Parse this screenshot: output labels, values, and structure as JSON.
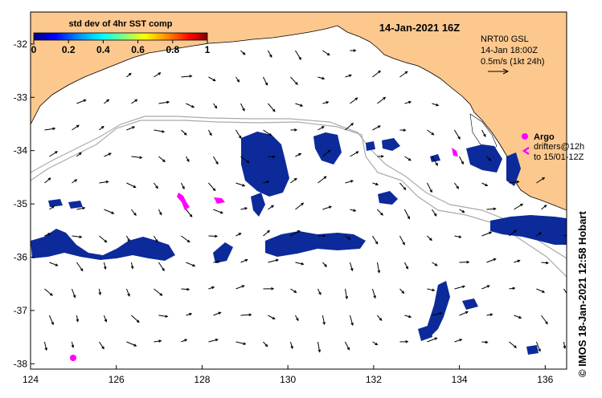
{
  "date_title": "14-Jan-2021 16Z",
  "colorbar": {
    "title": "std dev of 4hr SST comp",
    "ticks": [
      "0",
      "0.2",
      "0.4",
      "0.6",
      "0.8",
      "1"
    ],
    "colors": [
      "#000080",
      "#0000ff",
      "#00a0ff",
      "#00ffff",
      "#80ff80",
      "#ffff00",
      "#ff8000",
      "#ff0000",
      "#800000"
    ]
  },
  "current_info": {
    "line1": "NRT00 GSL",
    "line2": "14-Jan 18:00Z",
    "line3": "0.5m/s (1kt 24h)"
  },
  "legend": {
    "argo_label": "Argo",
    "drifter_label1": "drifters@12h",
    "drifter_label2": "to 15/01-12Z",
    "marker_color": "#ff00ff"
  },
  "axes": {
    "lon_ticks": [
      "124",
      "126",
      "128",
      "130",
      "132",
      "134",
      "136"
    ],
    "lat_ticks": [
      "-32",
      "-33",
      "-34",
      "-35",
      "-36",
      "-37",
      "-38"
    ],
    "lon_range": [
      124,
      136.5
    ],
    "lat_range": [
      -31.4,
      -38.1
    ]
  },
  "colors": {
    "land": "#fcc88e",
    "sst_patch": "#0c2a9a",
    "isobath": "#aaaaaa"
  },
  "credit": "© IMOS 18-Jan-2021 12:58 Hobart"
}
